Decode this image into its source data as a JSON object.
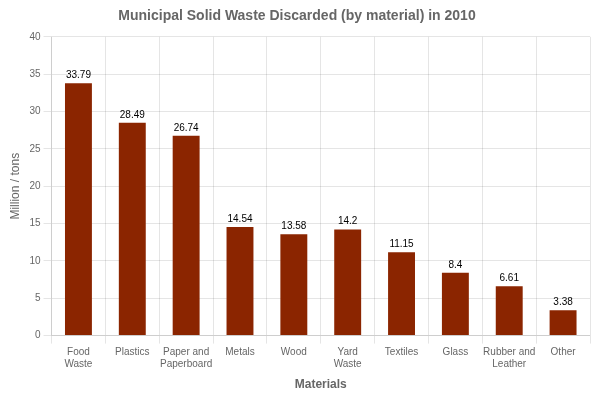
{
  "chart_data": {
    "type": "bar",
    "title": "Municipal Solid Waste Discarded (by material) in 2010",
    "xlabel": "Materials",
    "ylabel": "Million / tons",
    "categories": [
      "Food\nWaste",
      "Plastics",
      "Paper and\nPaperboard",
      "Metals",
      "Wood",
      "Yard\nWaste",
      "Textiles",
      "Glass",
      "Rubber and\nLeather",
      "Other"
    ],
    "values": [
      33.79,
      28.49,
      26.74,
      14.54,
      13.58,
      14.2,
      11.15,
      8.4,
      6.61,
      3.38
    ],
    "color": "#8B2500",
    "ylim": [
      0,
      40
    ],
    "yticks": [
      0,
      5,
      10,
      15,
      20,
      25,
      30,
      35,
      40
    ],
    "grid": true,
    "data_labels": true
  }
}
